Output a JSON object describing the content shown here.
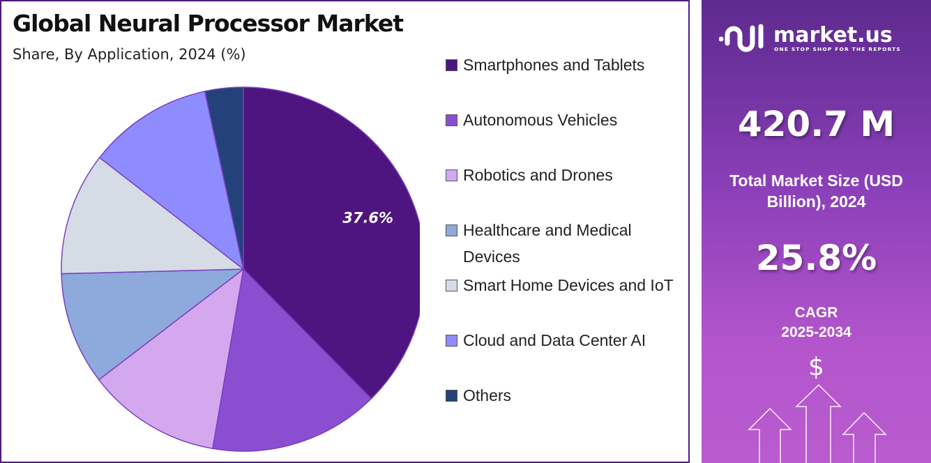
{
  "chart_data": {
    "type": "pie",
    "title": "Global Neural Processor Market",
    "subtitle": "Share, By Application, 2024 (%)",
    "legend_position": "right",
    "slices": [
      {
        "label": "Smartphones and Tablets",
        "value": 37.6,
        "color": "#4e1580",
        "data_label": "37.6%"
      },
      {
        "label": "Autonomous Vehicles",
        "value": 15.1,
        "color": "#8a4fd0"
      },
      {
        "label": "Robotics and Drones",
        "value": 11.9,
        "color": "#d4a8ee"
      },
      {
        "label": "Healthcare and Medical Devices",
        "value": 10.0,
        "color": "#8ea9db"
      },
      {
        "label": "Smart Home Devices and IoT",
        "value": 10.9,
        "color": "#d6dce5"
      },
      {
        "label": "Cloud and Data Center AI",
        "value": 11.1,
        "color": "#8e8cff"
      },
      {
        "label": "Others",
        "value": 3.4,
        "color": "#24427a"
      }
    ]
  },
  "panel": {
    "brand": "market.us",
    "tagline": "ONE STOP SHOP FOR THE REPORTS",
    "market_size": "420.7 M",
    "market_size_label": "Total Market Size (USD Billion), 2024",
    "cagr": "25.8%",
    "cagr_label": "CAGR",
    "cagr_period": "2025-2034",
    "dollar": "$"
  }
}
